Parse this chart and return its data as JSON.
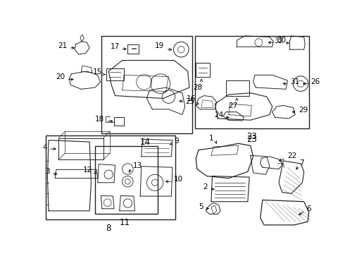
{
  "bg_color": "#ffffff",
  "line_color": "#222222",
  "text_color": "#000000",
  "fig_width": 4.9,
  "fig_height": 3.6,
  "dpi": 100
}
